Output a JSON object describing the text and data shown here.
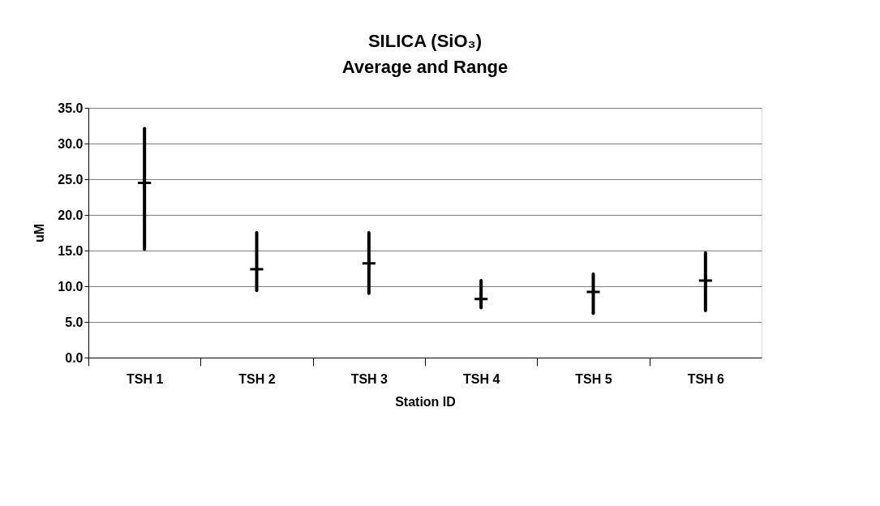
{
  "chart_data": {
    "type": "scatter",
    "title": "SILICA (SiO₃)",
    "subtitle": "Average and Range",
    "xlabel": "Station ID",
    "ylabel": "uM",
    "categories": [
      "TSH 1",
      "TSH 2",
      "TSH 3",
      "TSH 4",
      "TSH 5",
      "TSH 6"
    ],
    "series": [
      {
        "color": "#000000",
        "values": [
          24.5,
          12.4,
          13.2,
          8.2,
          9.2,
          10.8
        ],
        "errors": [
          [
            15.2,
            32.1
          ],
          [
            9.4,
            17.5
          ],
          [
            9.0,
            17.5
          ],
          [
            7.0,
            10.8
          ],
          [
            6.2,
            11.7
          ],
          [
            6.6,
            14.7
          ]
        ]
      }
    ],
    "ylim": [
      0,
      35
    ],
    "yticks": [
      {
        "value": 0,
        "label": "0.0"
      },
      {
        "value": 5,
        "label": "5.0"
      },
      {
        "value": 10,
        "label": "10.0"
      },
      {
        "value": 15,
        "label": "15.0"
      },
      {
        "value": 20,
        "label": "20.0"
      },
      {
        "value": 25,
        "label": "25.0"
      },
      {
        "value": 30,
        "label": "30.0"
      },
      {
        "value": 35,
        "label": "35.0"
      }
    ],
    "grid": "y",
    "marker": "cross"
  }
}
